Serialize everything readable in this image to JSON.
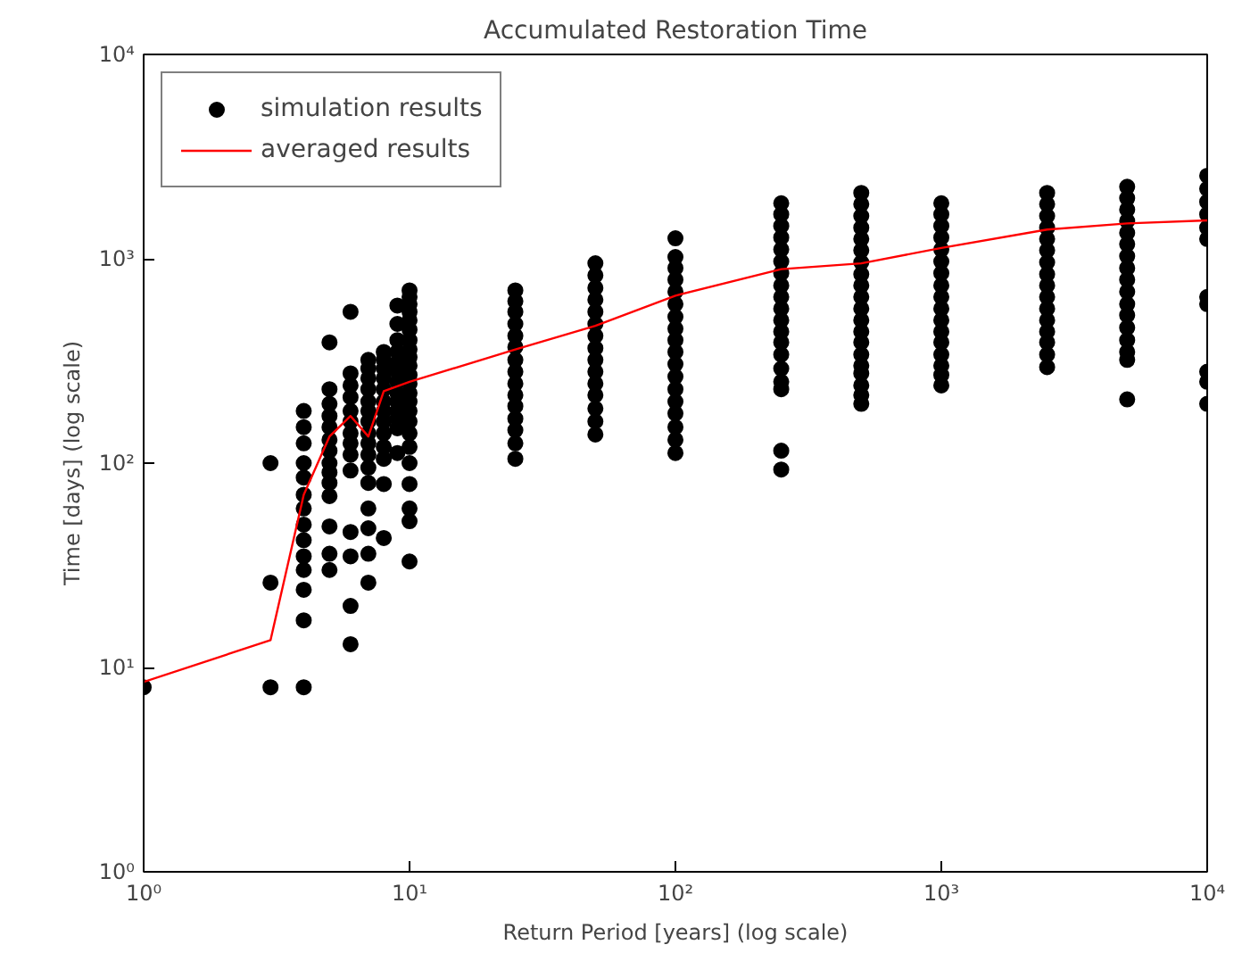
{
  "chart_data": {
    "type": "scatter",
    "title": "Accumulated Restoration Time",
    "xlabel": "Return Period [years] (log scale)",
    "ylabel": "Time [days] (log scale)",
    "log": "xy",
    "grid": false,
    "legend": "top left",
    "xlim": [
      1,
      10000
    ],
    "ylim": [
      1,
      10000
    ],
    "xticks": [
      {
        "value": 1,
        "label": "10⁰"
      },
      {
        "value": 10,
        "label": "10¹"
      },
      {
        "value": 100,
        "label": "10²"
      },
      {
        "value": 1000,
        "label": "10³"
      },
      {
        "value": 10000,
        "label": "10⁴"
      }
    ],
    "yticks": [
      {
        "value": 1,
        "label": "10⁰"
      },
      {
        "value": 10,
        "label": "10¹"
      },
      {
        "value": 100,
        "label": "10²"
      },
      {
        "value": 1000,
        "label": "10³"
      },
      {
        "value": 10000,
        "label": "10⁴"
      }
    ],
    "series": [
      {
        "name": "simulation results",
        "marker": "circle",
        "color": "#000000",
        "x": [
          1,
          3,
          3,
          3,
          4,
          4,
          4,
          4,
          4,
          4,
          4,
          4,
          4,
          4,
          4,
          4,
          4,
          4,
          5,
          5,
          5,
          5,
          5,
          5,
          5,
          5,
          5,
          5,
          5,
          5,
          5,
          5,
          6,
          6,
          6,
          6,
          6,
          6,
          6,
          6,
          6,
          6,
          6,
          6,
          6,
          6,
          7,
          7,
          7,
          7,
          7,
          7,
          7,
          7,
          7,
          7,
          7,
          7,
          7,
          7,
          7,
          7,
          8,
          8,
          8,
          8,
          8,
          8,
          8,
          8,
          8,
          8,
          8,
          8,
          8,
          9,
          9,
          9,
          9,
          9,
          9,
          9,
          9,
          9,
          9,
          9,
          9,
          9,
          10,
          10,
          10,
          10,
          10,
          10,
          10,
          10,
          10,
          10,
          10,
          10,
          10,
          10,
          10,
          10,
          10,
          10,
          10,
          10,
          10,
          10,
          10,
          25,
          25,
          25,
          25,
          25,
          25,
          25,
          25,
          25,
          25,
          25,
          25,
          25,
          25,
          25,
          50,
          50,
          50,
          50,
          50,
          50,
          50,
          50,
          50,
          50,
          50,
          50,
          50,
          50,
          50,
          100,
          100,
          100,
          100,
          100,
          100,
          100,
          100,
          100,
          100,
          100,
          100,
          100,
          100,
          100,
          100,
          100,
          100,
          250,
          250,
          250,
          250,
          250,
          250,
          250,
          250,
          250,
          250,
          250,
          250,
          250,
          250,
          250,
          250,
          250,
          250,
          250,
          500,
          500,
          500,
          500,
          500,
          500,
          500,
          500,
          500,
          500,
          500,
          500,
          500,
          500,
          500,
          500,
          500,
          500,
          500,
          500,
          1000,
          1000,
          1000,
          1000,
          1000,
          1000,
          1000,
          1000,
          1000,
          1000,
          1000,
          1000,
          1000,
          1000,
          1000,
          1000,
          1000,
          2500,
          2500,
          2500,
          2500,
          2500,
          2500,
          2500,
          2500,
          2500,
          2500,
          2500,
          2500,
          2500,
          2500,
          2500,
          2500,
          5000,
          5000,
          5000,
          5000,
          5000,
          5000,
          5000,
          5000,
          5000,
          5000,
          5000,
          5000,
          5000,
          5000,
          5000,
          5000,
          5000,
          10000,
          10000,
          10000,
          10000,
          10000,
          10000,
          10000,
          10000,
          10000,
          10000,
          10000
        ],
        "values": [
          8,
          100,
          26,
          8,
          180,
          150,
          125,
          100,
          85,
          70,
          60,
          50,
          42,
          35,
          30,
          24,
          17,
          8,
          390,
          230,
          195,
          170,
          150,
          130,
          115,
          100,
          90,
          80,
          69,
          49,
          36,
          30,
          550,
          275,
          240,
          210,
          180,
          160,
          140,
          125,
          110,
          92,
          46,
          35,
          20,
          13,
          320,
          290,
          260,
          230,
          200,
          180,
          160,
          140,
          125,
          110,
          95,
          80,
          60,
          48,
          36,
          26,
          350,
          320,
          290,
          260,
          230,
          200,
          180,
          160,
          140,
          120,
          105,
          79,
          43,
          590,
          480,
          400,
          350,
          310,
          280,
          250,
          220,
          200,
          180,
          165,
          148,
          112,
          700,
          650,
          600,
          550,
          500,
          450,
          400,
          360,
          330,
          300,
          270,
          245,
          220,
          200,
          180,
          160,
          140,
          120,
          100,
          79,
          60,
          52,
          33,
          700,
          620,
          550,
          480,
          420,
          370,
          320,
          280,
          245,
          215,
          190,
          165,
          145,
          125,
          105,
          950,
          830,
          720,
          630,
          550,
          480,
          420,
          365,
          320,
          280,
          245,
          215,
          185,
          160,
          138,
          1260,
          1020,
          900,
          790,
          690,
          600,
          520,
          455,
          400,
          350,
          305,
          265,
          230,
          200,
          175,
          150,
          130,
          112,
          1870,
          1650,
          1450,
          1270,
          1110,
          970,
          850,
          740,
          650,
          570,
          500,
          440,
          390,
          340,
          290,
          250,
          230,
          115,
          93,
          2100,
          1850,
          1620,
          1420,
          1250,
          1100,
          960,
          840,
          740,
          650,
          570,
          500,
          440,
          390,
          340,
          300,
          275,
          240,
          215,
          195,
          1870,
          1650,
          1450,
          1270,
          1110,
          970,
          850,
          740,
          650,
          570,
          500,
          440,
          390,
          340,
          300,
          270,
          240,
          2100,
          1850,
          1620,
          1420,
          1250,
          1100,
          960,
          840,
          740,
          650,
          570,
          500,
          440,
          390,
          340,
          295,
          2250,
          1980,
          1740,
          1530,
          1340,
          1180,
          1030,
          900,
          790,
          690,
          600,
          530,
          460,
          400,
          350,
          320,
          205,
          2550,
          2200,
          1900,
          1650,
          1420,
          1250,
          650,
          600,
          280,
          250,
          195
        ]
      },
      {
        "name": "averaged results",
        "type": "line",
        "line_style": "solid",
        "color": "#ff0000",
        "x": [
          1,
          3,
          4,
          5,
          6,
          7,
          8,
          10,
          25,
          50,
          100,
          250,
          500,
          1000,
          2500,
          5000,
          10000
        ],
        "values": [
          8.5,
          13.6,
          70,
          135,
          170,
          135,
          225,
          250,
          360,
          470,
          660,
          890,
          950,
          1130,
          1390,
          1490,
          1540
        ]
      }
    ]
  }
}
